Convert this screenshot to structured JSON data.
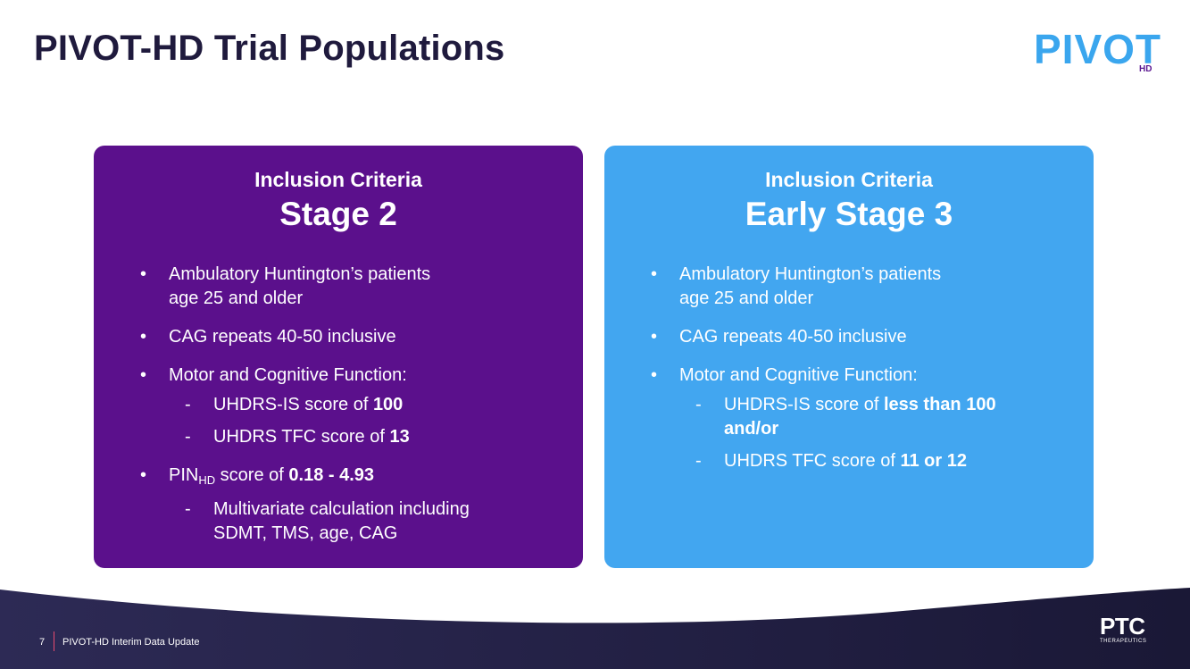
{
  "title": "PIVOT-HD Trial Populations",
  "logo": {
    "main": "PIVOT",
    "sub": "HD"
  },
  "left_card": {
    "kicker": "Inclusion Criteria",
    "stage": "Stage 2",
    "item1_a": "Ambulatory Huntington’s patients",
    "item1_b": "age 25 and older",
    "item2": "CAG repeats 40-50 inclusive",
    "item3": "Motor and Cognitive Function:",
    "sub1_text": "UHDRS-IS score of ",
    "sub1_bold": "100",
    "sub2_text": "UHDRS TFC score of ",
    "sub2_bold": "13",
    "item4_pre": "PIN",
    "item4_subscript": "HD",
    "item4_text": " score of ",
    "item4_bold": "0.18 - 4.93",
    "sub3_a": "Multivariate calculation including",
    "sub3_b": "SDMT, TMS, age, CAG"
  },
  "right_card": {
    "kicker": "Inclusion Criteria",
    "stage": "Early Stage 3",
    "item1_a": "Ambulatory Huntington’s patients",
    "item1_b": "age 25 and older",
    "item2": "CAG repeats 40-50 inclusive",
    "item3": "Motor and Cognitive Function:",
    "sub1_text": "UHDRS-IS score of ",
    "sub1_bold_a": "less than 100",
    "sub1_bold_b": "and/or",
    "sub2_text": "UHDRS TFC score of ",
    "sub2_bold": "11 or 12"
  },
  "bullet": "•",
  "dash": "-",
  "footer": {
    "page_number": "7",
    "text": "PIVOT-HD Interim Data Update",
    "brand": "PTC",
    "brand_sub": "THERAPEUTICS"
  },
  "colors": {
    "title": "#1f1a3d",
    "purple": "#5b108c",
    "blue": "#42a6f0",
    "footer_dark": "#1f1d3f",
    "accent": "#e94b6f"
  }
}
